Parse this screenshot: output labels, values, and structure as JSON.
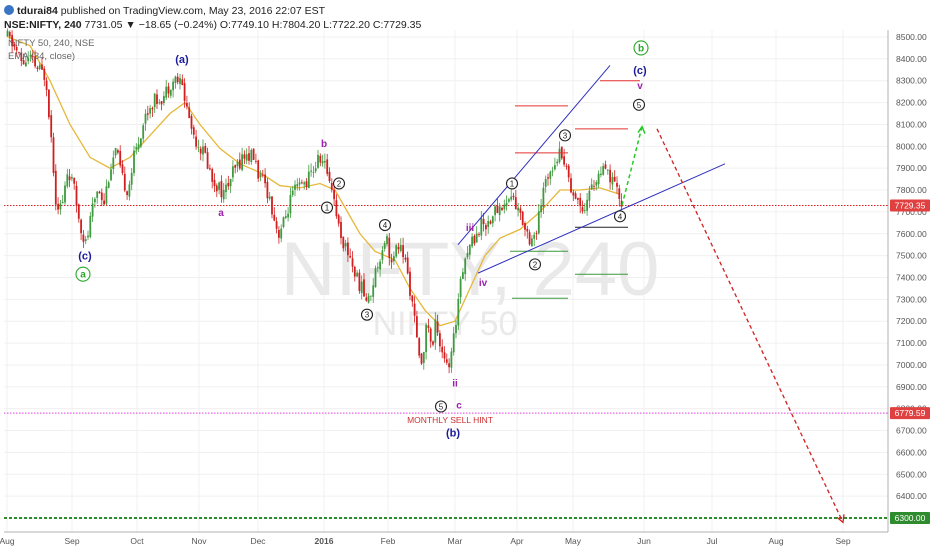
{
  "header": {
    "author": "tdurai84",
    "published": "published on TradingView.com, May 23, 2016 22:07 EST",
    "symbol": "NSE:NIFTY, 240",
    "last": "7731.05",
    "change": "▼ −18.65 (−0.24%)",
    "open": "O:7749.10",
    "high": "H:7804.20",
    "low": "L:7722.20",
    "close": "C:7729.35"
  },
  "legend": {
    "symbol_line": "NIFTY 50, 240, NSE",
    "ema_line": "EMA (34, close)"
  },
  "watermark": {
    "big": "NIFTY, 240",
    "small": "NIFTY 50"
  },
  "colors": {
    "bull": "#3f9a3f",
    "bear": "#d11f1f",
    "ema": "#e5b73a",
    "trend": "#2f2fbf",
    "target": "#d11f1f",
    "projection": "#22cc22",
    "pink_level": "#e040e0",
    "green_level": "#2e8b2e",
    "price_tag": "#e04040"
  },
  "price_tags": {
    "current": "7729.35",
    "sell_hint": "6779.59",
    "target": "6300.00"
  },
  "annotations": {
    "sell_hint": "MONTHLY SELL HINT"
  },
  "chart_data": {
    "type": "candlestick",
    "title": "",
    "xlabel": "",
    "ylabel": "",
    "ylim": [
      6200,
      8560
    ],
    "x_ticks": [
      "Aug",
      "Sep",
      "Oct",
      "Nov",
      "Dec",
      "2016",
      "Feb",
      "Mar",
      "Apr",
      "May",
      "Jun",
      "Jul",
      "Aug",
      "Sep"
    ],
    "y_ticks": [
      "8500.00",
      "8400.00",
      "8300.00",
      "8200.00",
      "8100.00",
      "8000.00",
      "7900.00",
      "7800.00",
      "7700.00",
      "7600.00",
      "7500.00",
      "7400.00",
      "7300.00",
      "7200.00",
      "7100.00",
      "7000.00",
      "6900.00",
      "6800.00",
      "6700.00",
      "6600.00",
      "6500.00",
      "6400.00",
      "6300.00"
    ],
    "grid": true,
    "price_path": [
      [
        7.5,
        8500
      ],
      [
        15,
        8450
      ],
      [
        22,
        8380
      ],
      [
        30,
        8400
      ],
      [
        38,
        8350
      ],
      [
        46,
        8320
      ],
      [
        52,
        8000
      ],
      [
        56,
        7750
      ],
      [
        62,
        7720
      ],
      [
        68,
        7900
      ],
      [
        74,
        7800
      ],
      [
        80,
        7650
      ],
      [
        86,
        7550
      ],
      [
        92,
        7700
      ],
      [
        98,
        7820
      ],
      [
        104,
        7750
      ],
      [
        110,
        7900
      ],
      [
        116,
        7980
      ],
      [
        122,
        7850
      ],
      [
        128,
        7800
      ],
      [
        134,
        7950
      ],
      [
        140,
        8050
      ],
      [
        146,
        8150
      ],
      [
        152,
        8200
      ],
      [
        158,
        8220
      ],
      [
        164,
        8230
      ],
      [
        170,
        8290
      ],
      [
        176,
        8310
      ],
      [
        182,
        8280
      ],
      [
        188,
        8150
      ],
      [
        194,
        8050
      ],
      [
        200,
        8000
      ],
      [
        206,
        7950
      ],
      [
        212,
        7850
      ],
      [
        218,
        7820
      ],
      [
        224,
        7780
      ],
      [
        230,
        7850
      ],
      [
        236,
        7900
      ],
      [
        242,
        7950
      ],
      [
        248,
        7960
      ],
      [
        254,
        7950
      ],
      [
        260,
        7850
      ],
      [
        266,
        7820
      ],
      [
        272,
        7720
      ],
      [
        278,
        7600
      ],
      [
        284,
        7650
      ],
      [
        290,
        7750
      ],
      [
        296,
        7800
      ],
      [
        302,
        7820
      ],
      [
        308,
        7850
      ],
      [
        314,
        7900
      ],
      [
        320,
        7950
      ],
      [
        326,
        7900
      ],
      [
        332,
        7820
      ],
      [
        338,
        7650
      ],
      [
        344,
        7550
      ],
      [
        350,
        7500
      ],
      [
        356,
        7400
      ],
      [
        362,
        7350
      ],
      [
        368,
        7280
      ],
      [
        374,
        7400
      ],
      [
        380,
        7500
      ],
      [
        386,
        7600
      ],
      [
        392,
        7450
      ],
      [
        398,
        7550
      ],
      [
        404,
        7500
      ],
      [
        410,
        7350
      ],
      [
        416,
        7150
      ],
      [
        420,
        6980
      ],
      [
        424,
        7100
      ],
      [
        428,
        7200
      ],
      [
        432,
        7050
      ],
      [
        436,
        7220
      ],
      [
        440,
        7100
      ],
      [
        444,
        7050
      ],
      [
        448,
        6960
      ],
      [
        452,
        7050
      ],
      [
        456,
        7200
      ],
      [
        460,
        7400
      ],
      [
        464,
        7480
      ],
      [
        470,
        7550
      ],
      [
        476,
        7600
      ],
      [
        482,
        7650
      ],
      [
        488,
        7650
      ],
      [
        494,
        7700
      ],
      [
        500,
        7720
      ],
      [
        506,
        7740
      ],
      [
        512,
        7780
      ],
      [
        518,
        7700
      ],
      [
        524,
        7650
      ],
      [
        530,
        7580
      ],
      [
        536,
        7600
      ],
      [
        542,
        7750
      ],
      [
        546,
        7850
      ],
      [
        550,
        7900
      ],
      [
        556,
        7950
      ],
      [
        562,
        7980
      ],
      [
        566,
        7900
      ],
      [
        572,
        7800
      ],
      [
        578,
        7750
      ],
      [
        584,
        7720
      ],
      [
        590,
        7800
      ],
      [
        596,
        7850
      ],
      [
        602,
        7880
      ],
      [
        608,
        7870
      ],
      [
        614,
        7820
      ],
      [
        618,
        7780
      ],
      [
        622,
        7730
      ]
    ],
    "ema": [
      [
        8,
        8500
      ],
      [
        30,
        8460
      ],
      [
        50,
        8300
      ],
      [
        70,
        8100
      ],
      [
        90,
        7950
      ],
      [
        110,
        7900
      ],
      [
        130,
        7950
      ],
      [
        150,
        8050
      ],
      [
        170,
        8150
      ],
      [
        185,
        8200
      ],
      [
        200,
        8100
      ],
      [
        220,
        7990
      ],
      [
        240,
        7920
      ],
      [
        260,
        7880
      ],
      [
        280,
        7820
      ],
      [
        300,
        7810
      ],
      [
        320,
        7830
      ],
      [
        335,
        7800
      ],
      [
        345,
        7720
      ],
      [
        360,
        7600
      ],
      [
        375,
        7520
      ],
      [
        395,
        7480
      ],
      [
        410,
        7350
      ],
      [
        425,
        7250
      ],
      [
        440,
        7180
      ],
      [
        455,
        7200
      ],
      [
        470,
        7350
      ],
      [
        485,
        7500
      ],
      [
        500,
        7580
      ],
      [
        520,
        7620
      ],
      [
        540,
        7700
      ],
      [
        560,
        7800
      ],
      [
        580,
        7800
      ],
      [
        600,
        7810
      ],
      [
        620,
        7780
      ]
    ],
    "wave_labels": [
      {
        "text": "(a)",
        "x": 182,
        "y": 8400,
        "color": "#1a1a9a",
        "style": "bold"
      },
      {
        "text": "(c)",
        "x": 85,
        "y": 7500,
        "color": "#1a1a9a",
        "style": "bold"
      },
      {
        "text": "a",
        "x": 83,
        "y": 7415,
        "color": "#2aa82a",
        "style": "circle"
      },
      {
        "text": "b",
        "x": 324,
        "y": 8015,
        "color": "#9a22aa",
        "style": "plain"
      },
      {
        "text": "a",
        "x": 221,
        "y": 7700,
        "color": "#9a22aa",
        "style": "plain"
      },
      {
        "text": "2",
        "x": 339,
        "y": 7830,
        "color": "#222222",
        "style": "circle"
      },
      {
        "text": "1",
        "x": 327,
        "y": 7720,
        "color": "#222222",
        "style": "circle"
      },
      {
        "text": "4",
        "x": 385,
        "y": 7640,
        "color": "#222222",
        "style": "circle"
      },
      {
        "text": "3",
        "x": 367,
        "y": 7230,
        "color": "#222222",
        "style": "circle"
      },
      {
        "text": "5",
        "x": 441,
        "y": 6810,
        "color": "#222222",
        "style": "circle"
      },
      {
        "text": "ii",
        "x": 455,
        "y": 6920,
        "color": "#9a22aa",
        "style": "plain"
      },
      {
        "text": "c",
        "x": 459,
        "y": 6820,
        "color": "#9a22aa",
        "style": "plain"
      },
      {
        "text": "(b)",
        "x": 453,
        "y": 6690,
        "color": "#1a1a9a",
        "style": "bold"
      },
      {
        "text": "iii",
        "x": 470,
        "y": 7630,
        "color": "#9a22aa",
        "style": "plain"
      },
      {
        "text": "iv",
        "x": 483,
        "y": 7380,
        "color": "#9a22aa",
        "style": "plain"
      },
      {
        "text": "1",
        "x": 512,
        "y": 7830,
        "color": "#222222",
        "style": "circle"
      },
      {
        "text": "2",
        "x": 535,
        "y": 7460,
        "color": "#222222",
        "style": "circle"
      },
      {
        "text": "3",
        "x": 565,
        "y": 8050,
        "color": "#222222",
        "style": "circle"
      },
      {
        "text": "4",
        "x": 620,
        "y": 7680,
        "color": "#222222",
        "style": "circle"
      },
      {
        "text": "5",
        "x": 639,
        "y": 8190,
        "color": "#222222",
        "style": "circle"
      },
      {
        "text": "v",
        "x": 640,
        "y": 8280,
        "color": "#9a22aa",
        "style": "plain"
      },
      {
        "text": "(c)",
        "x": 640,
        "y": 8350,
        "color": "#1a1a9a",
        "style": "bold"
      },
      {
        "text": "b",
        "x": 641,
        "y": 8450,
        "color": "#2aa82a",
        "style": "circle"
      }
    ],
    "trendlines": [
      {
        "x1": 458,
        "y1": 7550,
        "x2": 610,
        "y2": 8370,
        "color": "#2f2fbf"
      },
      {
        "x1": 478,
        "y1": 7420,
        "x2": 725,
        "y2": 7920,
        "color": "#2f2fbf"
      }
    ],
    "target_segments": [
      {
        "x1": 600,
        "x2": 640,
        "y": 8300,
        "color": "#e53030"
      },
      {
        "x1": 515,
        "x2": 568,
        "y": 8185,
        "color": "#e53030"
      },
      {
        "x1": 575,
        "x2": 628,
        "y": 8080,
        "color": "#e53030"
      },
      {
        "x1": 515,
        "x2": 568,
        "y": 7970,
        "color": "#e53030"
      },
      {
        "x1": 510,
        "x2": 568,
        "y": 7520,
        "color": "#3a9a3a"
      },
      {
        "x1": 575,
        "x2": 628,
        "y": 7415,
        "color": "#3a9a3a"
      },
      {
        "x1": 512,
        "x2": 568,
        "y": 7305,
        "color": "#3a9a3a"
      },
      {
        "x1": 575,
        "x2": 628,
        "y": 7630,
        "color": "#222222"
      }
    ],
    "projection_up": {
      "x1": 622,
      "y1": 7730,
      "x2": 642,
      "y2": 8090
    },
    "projection_down": {
      "x1": 657,
      "y1": 8080,
      "x2": 843,
      "y2": 6280
    },
    "levels": {
      "current": 7729.35,
      "sell_hint": 6779.59,
      "target": 6300.0
    }
  }
}
